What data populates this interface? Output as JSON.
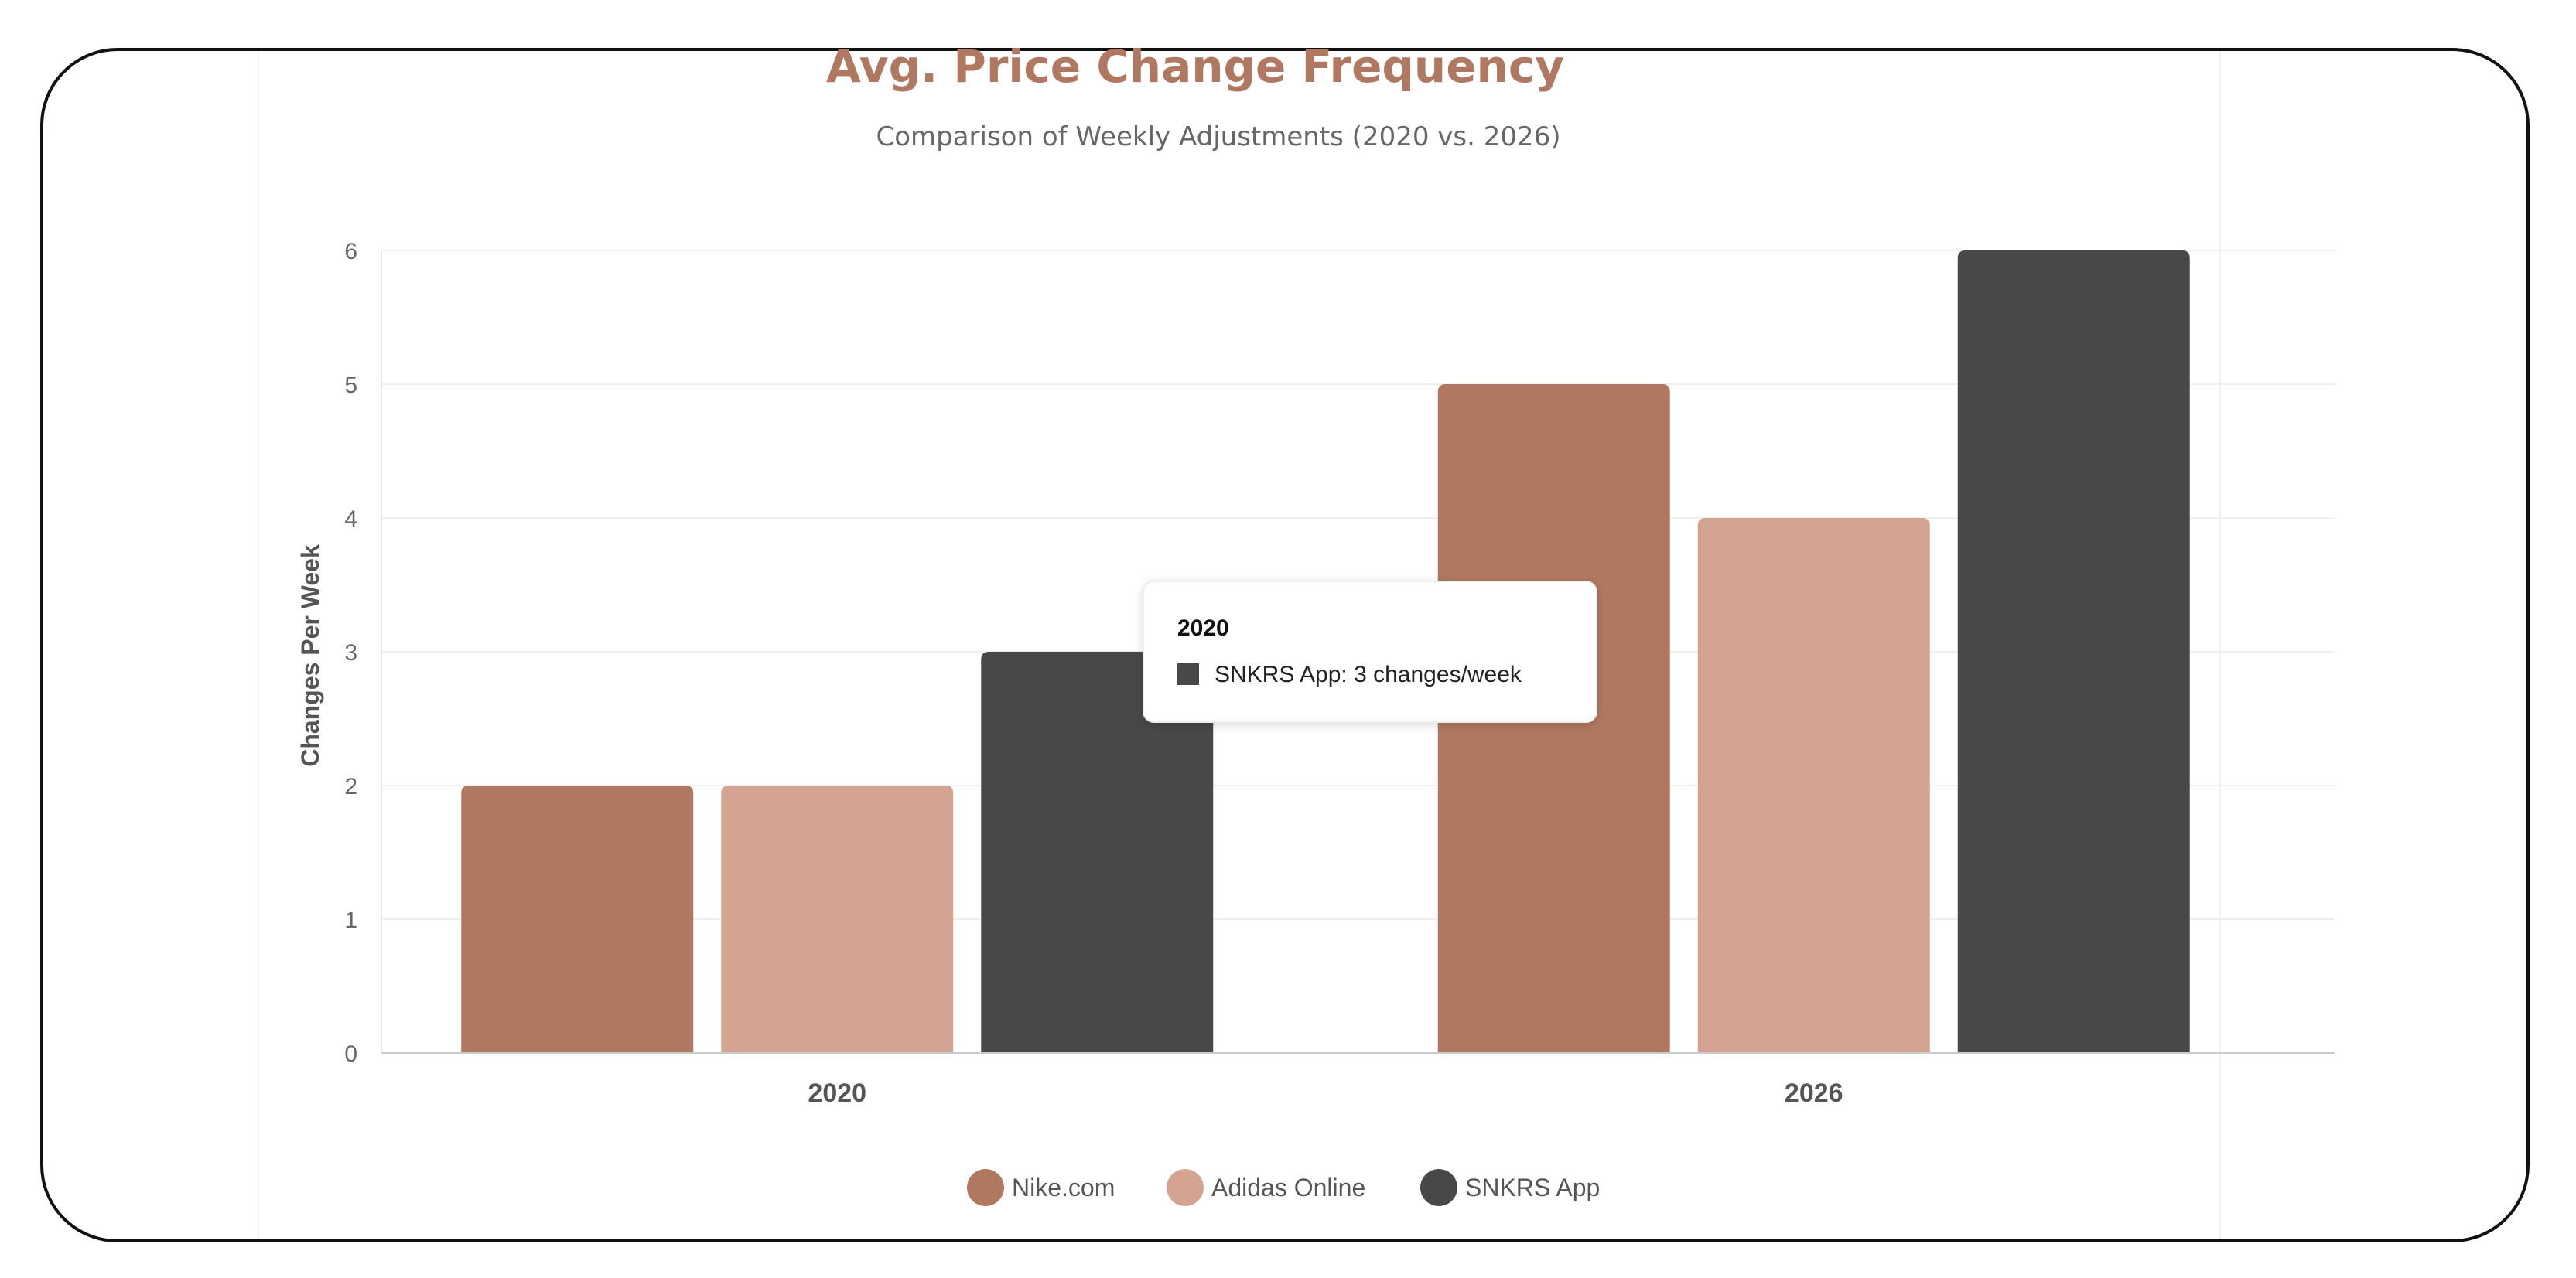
{
  "chart_data": {
    "type": "bar",
    "title": "Avg. Price Change Frequency",
    "subtitle": "Comparison of Weekly Adjustments (2020 vs. 2026)",
    "xlabel": "",
    "ylabel": "Changes Per Week",
    "categories": [
      "2020",
      "2026"
    ],
    "series": [
      {
        "name": "Nike.com",
        "values": [
          2,
          5
        ],
        "color": "#b07860"
      },
      {
        "name": "Adidas Online",
        "values": [
          2,
          4
        ],
        "color": "#d4a391"
      },
      {
        "name": "SNKRS App",
        "values": [
          3,
          6
        ],
        "color": "#484848"
      }
    ],
    "ylim": [
      0,
      6
    ],
    "yticks": [
      "0",
      "1",
      "2",
      "3",
      "4",
      "5",
      "6"
    ],
    "grid": true,
    "legend_position": "bottom-center",
    "tooltip": {
      "title": "2020",
      "series_index": 2,
      "text": "SNKRS App: 3 changes/week"
    }
  }
}
